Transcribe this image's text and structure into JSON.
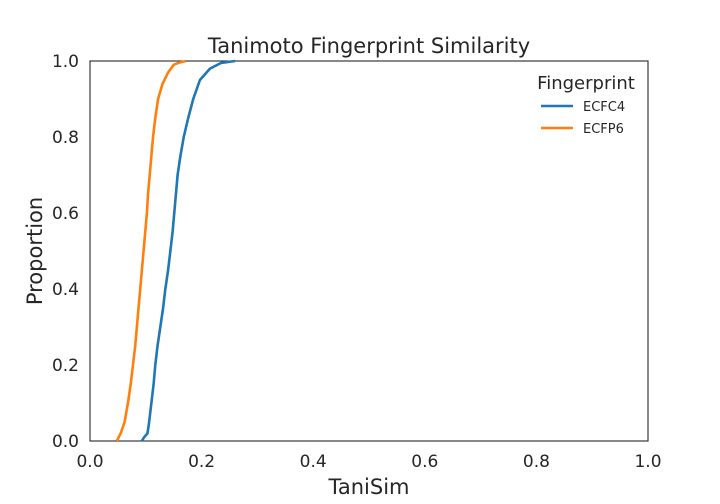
{
  "chart_data": {
    "type": "line",
    "subtype": "ecdf",
    "title": "Tanimoto Fingerprint Similarity",
    "xlabel": "TaniSim",
    "ylabel": "Proportion",
    "xlim": [
      0.0,
      1.0
    ],
    "ylim": [
      0.0,
      1.0
    ],
    "xticks": [
      "0.0",
      "0.2",
      "0.4",
      "0.6",
      "0.8",
      "1.0"
    ],
    "yticks": [
      "0.0",
      "0.2",
      "0.4",
      "0.6",
      "0.8",
      "1.0"
    ],
    "grid": false,
    "legend": {
      "title": "Fingerprint",
      "placement": "top-right"
    },
    "series": [
      {
        "name": "ECFC4",
        "color": "#1f77b4",
        "points": [
          [
            0.093,
            0.0
          ],
          [
            0.097,
            0.01
          ],
          [
            0.103,
            0.02
          ],
          [
            0.106,
            0.05
          ],
          [
            0.11,
            0.1
          ],
          [
            0.114,
            0.15
          ],
          [
            0.117,
            0.2
          ],
          [
            0.121,
            0.25
          ],
          [
            0.126,
            0.3
          ],
          [
            0.131,
            0.35
          ],
          [
            0.135,
            0.4
          ],
          [
            0.14,
            0.45
          ],
          [
            0.144,
            0.5
          ],
          [
            0.148,
            0.55
          ],
          [
            0.151,
            0.6
          ],
          [
            0.154,
            0.65
          ],
          [
            0.157,
            0.7
          ],
          [
            0.162,
            0.75
          ],
          [
            0.168,
            0.8
          ],
          [
            0.176,
            0.85
          ],
          [
            0.185,
            0.9
          ],
          [
            0.197,
            0.95
          ],
          [
            0.215,
            0.98
          ],
          [
            0.235,
            0.995
          ],
          [
            0.26,
            1.0
          ]
        ]
      },
      {
        "name": "ECFP6",
        "color": "#ff7f0e",
        "points": [
          [
            0.048,
            0.0
          ],
          [
            0.055,
            0.02
          ],
          [
            0.062,
            0.05
          ],
          [
            0.068,
            0.1
          ],
          [
            0.073,
            0.15
          ],
          [
            0.077,
            0.2
          ],
          [
            0.081,
            0.25
          ],
          [
            0.084,
            0.3
          ],
          [
            0.087,
            0.35
          ],
          [
            0.09,
            0.4
          ],
          [
            0.093,
            0.45
          ],
          [
            0.096,
            0.5
          ],
          [
            0.099,
            0.55
          ],
          [
            0.102,
            0.6
          ],
          [
            0.104,
            0.65
          ],
          [
            0.107,
            0.7
          ],
          [
            0.11,
            0.75
          ],
          [
            0.113,
            0.8
          ],
          [
            0.117,
            0.85
          ],
          [
            0.122,
            0.9
          ],
          [
            0.13,
            0.94
          ],
          [
            0.14,
            0.97
          ],
          [
            0.15,
            0.99
          ],
          [
            0.158,
            0.995
          ],
          [
            0.172,
            1.0
          ]
        ]
      }
    ]
  }
}
